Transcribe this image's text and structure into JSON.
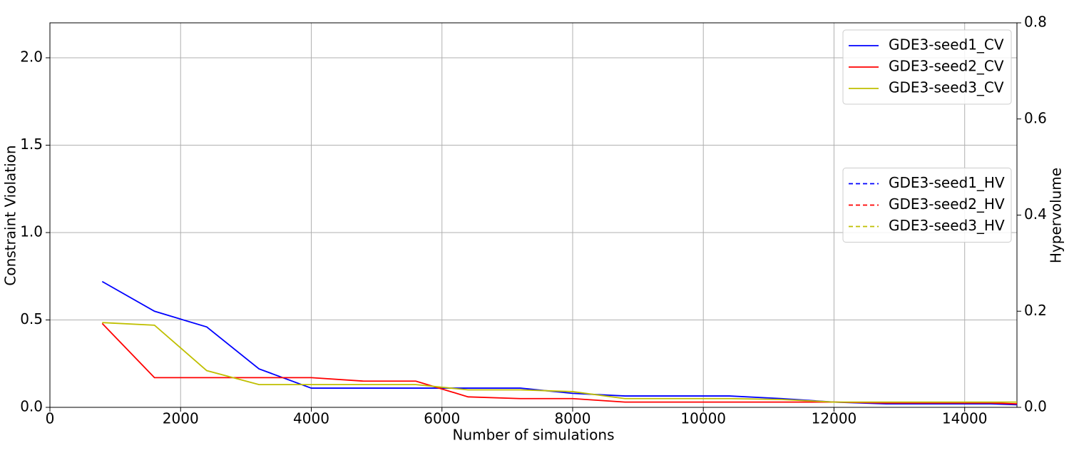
{
  "chart_data": {
    "type": "line",
    "x_label": "Number of simulations",
    "y_label": "Constraint Violation",
    "y2_label": "Hypervolume",
    "x": [
      800,
      1600,
      2400,
      3200,
      4000,
      4800,
      5600,
      6400,
      7200,
      8000,
      8800,
      9600,
      10400,
      11200,
      12000,
      12800,
      13600,
      14400,
      14800
    ],
    "series": [
      {
        "name": "GDE3-seed1_CV",
        "color": "#0000ff",
        "dash": "solid",
        "values": [
          0.72,
          0.55,
          0.46,
          0.22,
          0.11,
          0.11,
          0.11,
          0.11,
          0.11,
          0.08,
          0.065,
          0.065,
          0.065,
          0.05,
          0.03,
          0.02,
          0.02,
          0.02,
          0.015
        ]
      },
      {
        "name": "GDE3-seed2_CV",
        "color": "#ff0000",
        "dash": "solid",
        "values": [
          0.48,
          0.17,
          0.17,
          0.17,
          0.17,
          0.15,
          0.15,
          0.06,
          0.05,
          0.05,
          0.03,
          0.03,
          0.03,
          0.03,
          0.03,
          0.025,
          0.025,
          0.025,
          0.02
        ]
      },
      {
        "name": "GDE3-seed3_CV",
        "color": "#bfbf00",
        "dash": "solid",
        "values": [
          0.485,
          0.47,
          0.21,
          0.13,
          0.13,
          0.13,
          0.13,
          0.1,
          0.1,
          0.09,
          0.05,
          0.05,
          0.05,
          0.045,
          0.03,
          0.03,
          0.03,
          0.03,
          0.03
        ]
      },
      {
        "name": "GDE3-seed1_HV",
        "color": "#0000ff",
        "dash": "dashed",
        "axis": "y2",
        "values": [
          null,
          null,
          null,
          null,
          null,
          null,
          null,
          null,
          null,
          null,
          null,
          null,
          null,
          null,
          null,
          null,
          null,
          null,
          null
        ]
      },
      {
        "name": "GDE3-seed2_HV",
        "color": "#ff0000",
        "dash": "dashed",
        "axis": "y2",
        "values": [
          null,
          null,
          null,
          null,
          null,
          null,
          null,
          null,
          null,
          null,
          null,
          null,
          null,
          null,
          null,
          null,
          null,
          null,
          null
        ]
      },
      {
        "name": "GDE3-seed3_HV",
        "color": "#bfbf00",
        "dash": "dashed",
        "axis": "y2",
        "values": [
          null,
          null,
          null,
          null,
          null,
          null,
          null,
          null,
          null,
          null,
          null,
          null,
          null,
          null,
          null,
          null,
          null,
          null,
          null
        ]
      }
    ],
    "xlim": [
      0,
      14800
    ],
    "xticks": [
      0,
      2000,
      4000,
      6000,
      8000,
      10000,
      12000,
      14000
    ],
    "ylim": [
      0,
      2.2
    ],
    "yticks": [
      {
        "value": 0,
        "label": "0.0"
      },
      {
        "value": 0.5,
        "label": "0.5"
      },
      {
        "value": 1,
        "label": "1.0"
      },
      {
        "value": 1.5,
        "label": "1.5"
      },
      {
        "value": 2,
        "label": "2.0"
      }
    ],
    "y2lim": [
      0,
      0.8
    ],
    "y2ticks": [
      {
        "value": 0,
        "label": "0.0"
      },
      0.2,
      0.4,
      0.6,
      0.8
    ],
    "grid": true,
    "legend_y": "upper right",
    "legend_y2": "center right"
  }
}
